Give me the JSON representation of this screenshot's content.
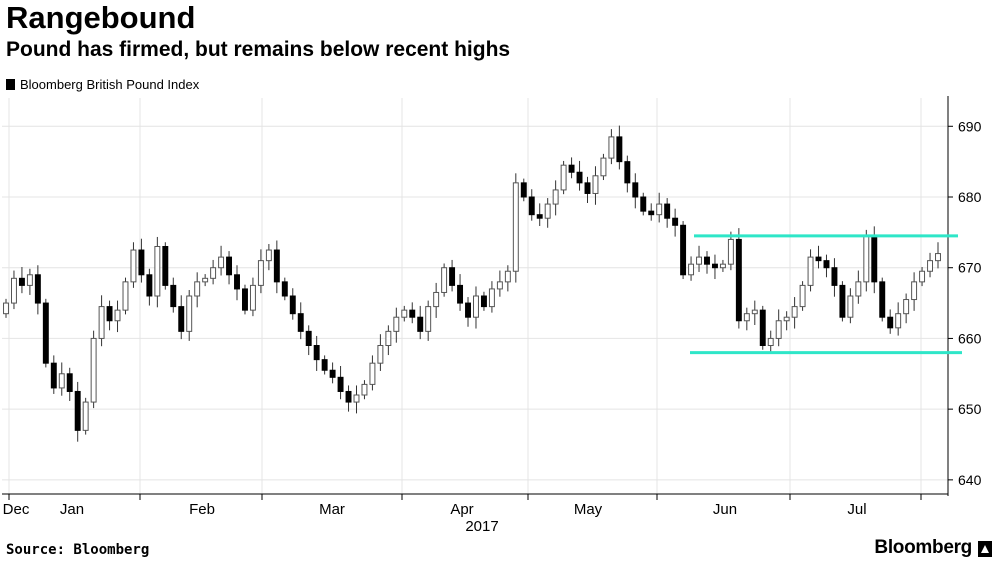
{
  "chart_data": {
    "type": "candlestick",
    "title": "Rangebound",
    "subtitle": "Pound has firmed, but remains below recent highs",
    "series_name": "Bloomberg British Pound Index",
    "ylim": [
      638,
      694
    ],
    "y_ticks": [
      "640",
      "650",
      "660",
      "670",
      "680",
      "690"
    ],
    "x_labels": [
      "Dec",
      "Jan",
      "Feb",
      "Mar",
      "Apr",
      "May",
      "Jun",
      "Jul"
    ],
    "x_sub_label": "2017",
    "grid": true,
    "y_axis_side": "right",
    "band": {
      "upper": 674.5,
      "lower": 658
    },
    "colors": {
      "up": "#ffffff",
      "down": "#000000",
      "band": "#2ee6c8",
      "grid": "#e4e4e4",
      "wick": "#333333"
    },
    "closes": [
      665.0,
      668.5,
      667.5,
      669.0,
      665.0,
      656.5,
      653.0,
      655.0,
      652.5,
      647.0,
      651.0,
      660.0,
      664.5,
      662.5,
      664.0,
      668.0,
      672.5,
      669.0,
      666.0,
      673.0,
      667.5,
      664.5,
      661.0,
      666.0,
      668.0,
      668.5,
      670.0,
      671.5,
      669.0,
      667.0,
      664.0,
      667.5,
      671.0,
      672.5,
      668.0,
      666.0,
      663.5,
      661.0,
      659.0,
      657.0,
      655.5,
      654.5,
      652.5,
      651.0,
      652.0,
      653.5,
      656.5,
      659.0,
      661.0,
      663.0,
      664.0,
      663.0,
      661.0,
      664.5,
      666.5,
      670.0,
      667.5,
      665.0,
      663.0,
      666.0,
      664.5,
      667.0,
      668.0,
      669.5,
      682.0,
      680.0,
      677.5,
      677.0,
      679.0,
      681.0,
      684.5,
      683.5,
      682.0,
      680.5,
      683.0,
      685.5,
      688.5,
      685.0,
      682.0,
      680.0,
      678.0,
      677.5,
      679.0,
      677.0,
      676.0,
      669.0,
      670.5,
      671.5,
      670.5,
      670.0,
      670.5,
      674.0,
      662.5,
      663.5,
      664.0,
      659.0,
      660.0,
      662.5,
      663.0,
      664.5,
      667.5,
      671.5,
      671.0,
      670.0,
      667.5,
      663.0,
      666.0,
      668.0,
      674.5,
      668.0,
      663.0,
      661.5,
      663.5,
      665.5,
      668.0,
      669.5,
      671.0,
      672.0
    ],
    "copy_note": "",
    "source": "Source: Bloomberg",
    "brand": "Bloomberg"
  }
}
